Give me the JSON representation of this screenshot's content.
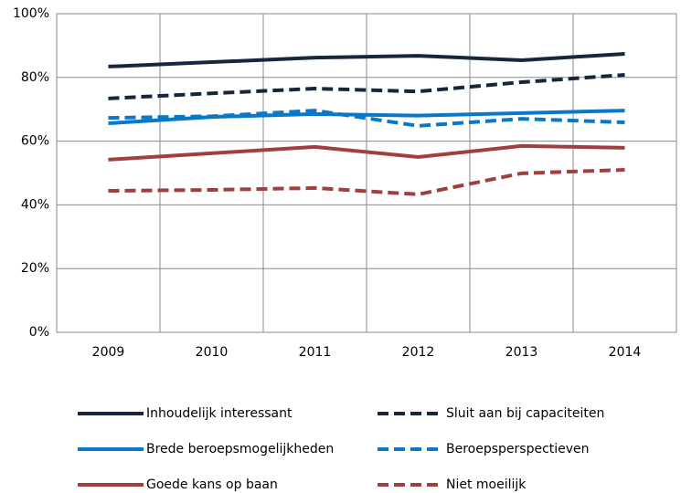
{
  "chart_data": {
    "type": "line",
    "categories": [
      "2009",
      "2010",
      "2011",
      "2012",
      "2013",
      "2014"
    ],
    "series": [
      {
        "name": "Inhoudelijk interessant",
        "color": "#17263c",
        "dashed": false,
        "values": [
          83.4,
          84.8,
          86.2,
          86.8,
          85.4,
          87.4
        ]
      },
      {
        "name": "Sluit aan bij capaciteiten",
        "color": "#17263c",
        "dashed": true,
        "values": [
          73.4,
          75,
          76.5,
          75.6,
          78.5,
          80.8
        ]
      },
      {
        "name": "Brede beroepsmogelijkheden",
        "color": "#0a78c8",
        "dashed": false,
        "values": [
          65.6,
          67.6,
          68.5,
          68,
          68.8,
          69.6
        ]
      },
      {
        "name": "Beroepsperspectieven",
        "color": "#0a78c8",
        "dashed": true,
        "values": [
          67.3,
          67.8,
          69.6,
          64.8,
          67,
          65.9
        ]
      },
      {
        "name": "Goede kans op baan",
        "color": "#a0403e",
        "dashed": false,
        "values": [
          54.2,
          56.2,
          58.2,
          55,
          58.5,
          57.9
        ]
      },
      {
        "name": "Niet moeilijk",
        "color": "#a0403e",
        "dashed": true,
        "values": [
          44.4,
          44.7,
          45.3,
          43.3,
          49.9,
          51
        ]
      }
    ],
    "ylim": [
      0,
      100
    ],
    "yticks": [
      {
        "value": 0,
        "label": "0%"
      },
      {
        "value": 20,
        "label": "20%"
      },
      {
        "value": 40,
        "label": "40%"
      },
      {
        "value": 60,
        "label": "60%"
      },
      {
        "value": 80,
        "label": "80%"
      },
      {
        "value": 100,
        "label": "100%"
      }
    ],
    "grid": true,
    "legend": "bottom"
  }
}
